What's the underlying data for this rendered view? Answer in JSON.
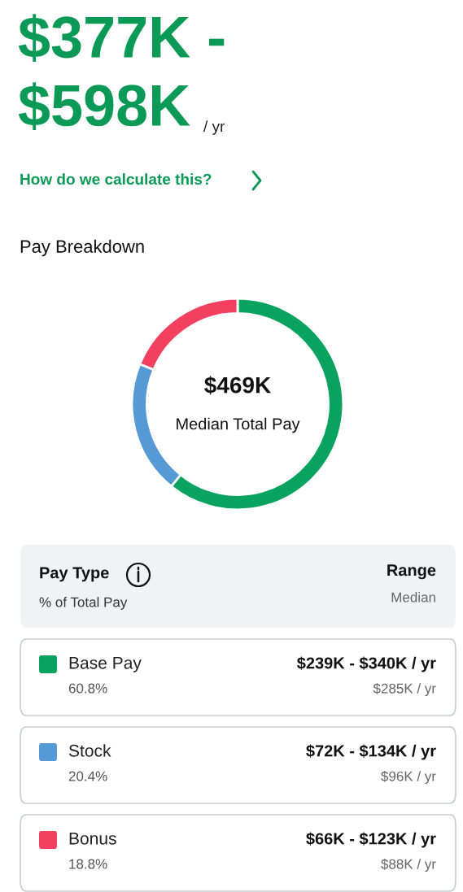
{
  "chart_data": {
    "type": "donut",
    "title": "Pay Breakdown",
    "categories": [
      "Base Pay",
      "Stock",
      "Bonus"
    ],
    "values": [
      60.8,
      20.4,
      18.8
    ],
    "colors": [
      "#07a35f",
      "#5599d6",
      "#f4405f"
    ],
    "value_labels": [
      "60.8%",
      "20.4%",
      "18.8%"
    ],
    "legend": "bottom",
    "annotations": [
      "$377K -",
      "$598K",
      "/ yr",
      "How do we calculate this?",
      "$469K",
      "Median Total Pay",
      "Pay Type",
      "% of Total Pay",
      "Range",
      "Median",
      "$239K - $340K / yr",
      "$72K - $134K / yr",
      "$66K - $123K / yr",
      "$285K / yr",
      "$96K / yr",
      "$88K / yr"
    ]
  }
}
